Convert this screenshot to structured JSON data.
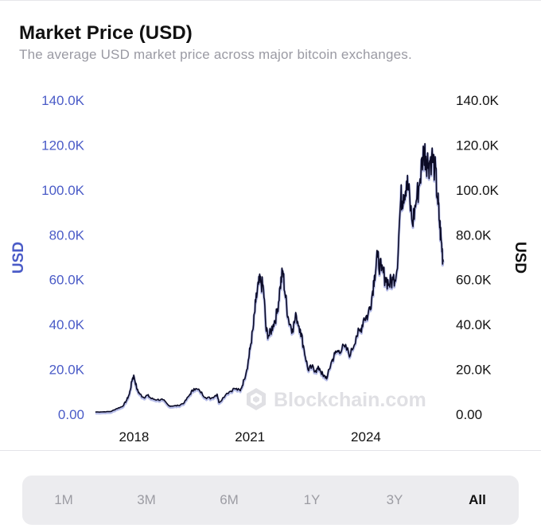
{
  "header": {
    "title": "Market Price (USD)",
    "subtitle": "The average USD market price across major bitcoin exchanges."
  },
  "watermark": {
    "text": "Blockchain.com",
    "icon": "blockchain-logo-icon"
  },
  "range_selector": {
    "options": [
      "1M",
      "3M",
      "6M",
      "1Y",
      "3Y",
      "All"
    ],
    "selected": "All"
  },
  "colors": {
    "left_axis": "#4a5bc7",
    "right_axis": "#111111",
    "line": "#0b0b26",
    "line_shadow": "#7b86d6",
    "watermark": "#e0e0e4"
  },
  "chart_data": {
    "type": "line",
    "title": "Market Price (USD)",
    "subtitle": "The average USD market price across major bitcoin exchanges.",
    "left_axis_label": "USD",
    "right_axis_label": "USD",
    "x_ticks": [
      {
        "value": 2018,
        "label": "2018"
      },
      {
        "value": 2021,
        "label": "2021"
      },
      {
        "value": 2024,
        "label": "2024"
      }
    ],
    "xlim": [
      2016.9,
      2026.1
    ],
    "ylim": [
      0,
      140000
    ],
    "y_ticks": [
      {
        "value": 0,
        "label": "0.00"
      },
      {
        "value": 20000,
        "label": "20.0K"
      },
      {
        "value": 40000,
        "label": "40.0K"
      },
      {
        "value": 60000,
        "label": "60.0K"
      },
      {
        "value": 80000,
        "label": "80.0K"
      },
      {
        "value": 100000,
        "label": "100.0K"
      },
      {
        "value": 120000,
        "label": "120.0K"
      },
      {
        "value": 140000,
        "label": "140.0K"
      }
    ],
    "grid": false,
    "legend": "none",
    "series": [
      {
        "x": [
          2017.0,
          2017.2,
          2017.4,
          2017.55,
          2017.7,
          2017.8,
          2017.88,
          2017.96,
          2018.0,
          2018.08,
          2018.15,
          2018.25,
          2018.35,
          2018.45,
          2018.6,
          2018.75,
          2018.9,
          2019.0,
          2019.15,
          2019.3,
          2019.45,
          2019.55,
          2019.7,
          2019.85,
          2020.0,
          2020.15,
          2020.2,
          2020.4,
          2020.6,
          2020.75,
          2020.85,
          2020.95,
          2021.0,
          2021.08,
          2021.15,
          2021.22,
          2021.28,
          2021.35,
          2021.42,
          2021.5,
          2021.6,
          2021.7,
          2021.78,
          2021.85,
          2021.92,
          2022.0,
          2022.1,
          2022.2,
          2022.3,
          2022.4,
          2022.5,
          2022.6,
          2022.7,
          2022.8,
          2022.9,
          2023.0,
          2023.1,
          2023.2,
          2023.3,
          2023.45,
          2023.6,
          2023.75,
          2023.85,
          2023.95,
          2024.05,
          2024.15,
          2024.22,
          2024.3,
          2024.4,
          2024.5,
          2024.6,
          2024.7,
          2024.8,
          2024.9,
          2024.97,
          2025.05,
          2025.1,
          2025.2,
          2025.3,
          2025.4,
          2025.5,
          2025.55,
          2025.62,
          2025.7,
          2025.78,
          2025.85,
          2025.9,
          2025.95,
          2026.0
        ],
        "y": [
          1000,
          1100,
          1250,
          2500,
          3500,
          6000,
          9000,
          16000,
          17000,
          11000,
          9000,
          7500,
          8500,
          7000,
          6500,
          6500,
          3800,
          3700,
          3900,
          5200,
          9000,
          11500,
          10500,
          7500,
          7200,
          9000,
          5200,
          9400,
          11500,
          10500,
          15500,
          23000,
          29000,
          38000,
          50000,
          58000,
          59000,
          56000,
          37000,
          35000,
          40000,
          45000,
          57000,
          64000,
          52000,
          42000,
          38000,
          44000,
          38000,
          29000,
          20000,
          21000,
          19500,
          20500,
          16800,
          16600,
          23000,
          27000,
          28500,
          30000,
          26500,
          35000,
          37000,
          43000,
          44000,
          52000,
          62000,
          70000,
          64000,
          61000,
          58000,
          60000,
          64000,
          96000,
          98000,
          104000,
          100000,
          85000,
          95000,
          105000,
          118000,
          115000,
          112000,
          115000,
          110000,
          97000,
          86000,
          77000,
          68000
        ]
      }
    ]
  }
}
